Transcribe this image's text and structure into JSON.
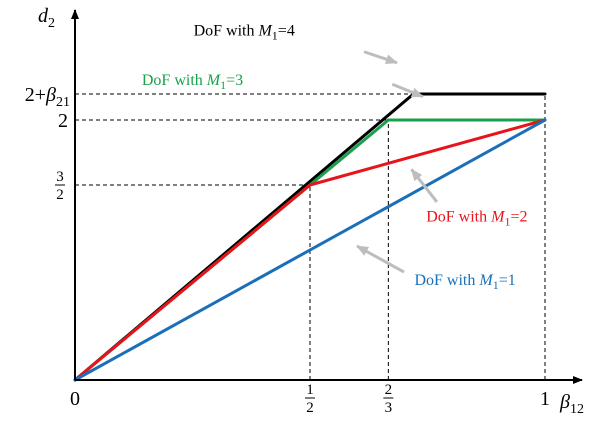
{
  "chart_data": {
    "type": "line",
    "xlabel": {
      "symbol": "β",
      "sub": "12"
    },
    "ylabel": {
      "symbol": "d",
      "sub": "2"
    },
    "xlim": [
      0,
      1
    ],
    "ylim": [
      0,
      2.2
    ],
    "grid": false,
    "x_ticks": [
      {
        "kind": "plain",
        "value": 0,
        "text": "0"
      },
      {
        "kind": "frac",
        "value": 0.5,
        "num": "1",
        "den": "2"
      },
      {
        "kind": "frac",
        "value": 0.6667,
        "num": "2",
        "den": "3"
      },
      {
        "kind": "plain",
        "value": 1,
        "text": "1"
      }
    ],
    "y_ticks": [
      {
        "kind": "frac",
        "value": 1.5,
        "num": "3",
        "den": "2"
      },
      {
        "kind": "plain",
        "value": 2,
        "text": "2"
      },
      {
        "kind": "beta",
        "value": 2.2,
        "prefix": "2+",
        "symbol": "β",
        "sub": "21"
      }
    ],
    "series": [
      {
        "name": "DoF with M1=4",
        "label": {
          "pre": "DoF with ",
          "var": "M",
          "sub": "1",
          "post": "=4"
        },
        "color": "#000000",
        "points": [
          [
            0,
            0
          ],
          [
            0.72,
            2.2
          ],
          [
            1,
            2.2
          ]
        ],
        "label_anchor": [
          0.36,
          2.65
        ],
        "arrow_from": [
          0.615,
          2.525
        ],
        "arrow_to": [
          0.685,
          2.44
        ]
      },
      {
        "name": "DoF with M1=3",
        "label": {
          "pre": "DoF with ",
          "var": "M",
          "sub": "1",
          "post": "=3"
        },
        "color": "#1aa04b",
        "points": [
          [
            0,
            0
          ],
          [
            0.6667,
            2.0
          ],
          [
            1,
            2.0
          ]
        ],
        "label_anchor": [
          0.25,
          2.27
        ],
        "arrow_from": [
          0.675,
          2.275
        ],
        "arrow_to": [
          0.74,
          2.18
        ]
      },
      {
        "name": "DoF with M1=2",
        "label": {
          "pre": "DoF with ",
          "var": "M",
          "sub": "1",
          "post": "=2"
        },
        "color": "#e8141c",
        "points": [
          [
            0,
            0
          ],
          [
            0.5,
            1.5
          ],
          [
            1,
            2.0
          ]
        ],
        "label_anchor": [
          0.855,
          1.22
        ],
        "arrow_from": [
          0.77,
          1.37
        ],
        "arrow_to": [
          0.716,
          1.62
        ]
      },
      {
        "name": "DoF with M1=1",
        "label": {
          "pre": "DoF with ",
          "var": "M",
          "sub": "1",
          "post": "=1"
        },
        "color": "#1a6fb8",
        "points": [
          [
            0,
            0
          ],
          [
            1,
            2.0
          ]
        ],
        "label_anchor": [
          0.83,
          0.73
        ],
        "arrow_from": [
          0.7,
          0.83
        ],
        "arrow_to": [
          0.6,
          1.03
        ]
      }
    ],
    "reference_lines": [
      {
        "axis": "x",
        "value": 0.5,
        "to_y": 1.5
      },
      {
        "axis": "x",
        "value": 0.6667,
        "to_y": 2.0
      },
      {
        "axis": "x",
        "value": 1,
        "to_y": 2.2
      },
      {
        "axis": "y",
        "value": 1.5,
        "to_x": 0.5
      },
      {
        "axis": "y",
        "value": 2.0,
        "to_x": 0.6667
      },
      {
        "axis": "y",
        "value": 2.2,
        "to_x": 0.72
      }
    ],
    "colors": {
      "axis": "#000000",
      "dashed": "#000000",
      "arrow": "#bdbdbd"
    }
  }
}
